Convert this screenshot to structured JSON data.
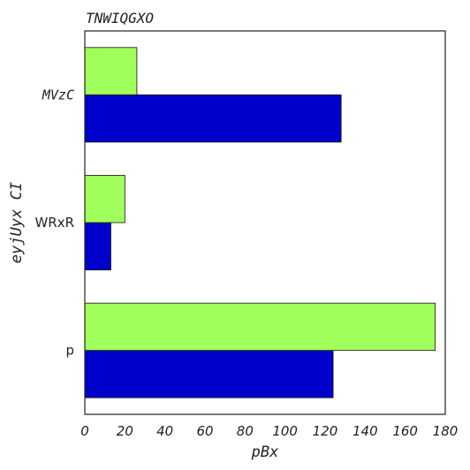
{
  "chart_data": {
    "type": "bar",
    "orientation": "horizontal",
    "title": "TNWIQGXO",
    "xlabel": "pBx",
    "ylabel": "eyjUyx CI",
    "categories": [
      "p",
      "WRxR",
      "MVzC"
    ],
    "series": [
      {
        "color": "#0000cc",
        "values": [
          124,
          13,
          128
        ]
      },
      {
        "color": "#a0ff5a",
        "values": [
          175,
          20,
          26
        ]
      }
    ],
    "xlim": [
      0,
      180
    ],
    "xticks": [
      0,
      20,
      40,
      60,
      80,
      100,
      120,
      140,
      160,
      180
    ],
    "grid": false,
    "legend": "none"
  }
}
